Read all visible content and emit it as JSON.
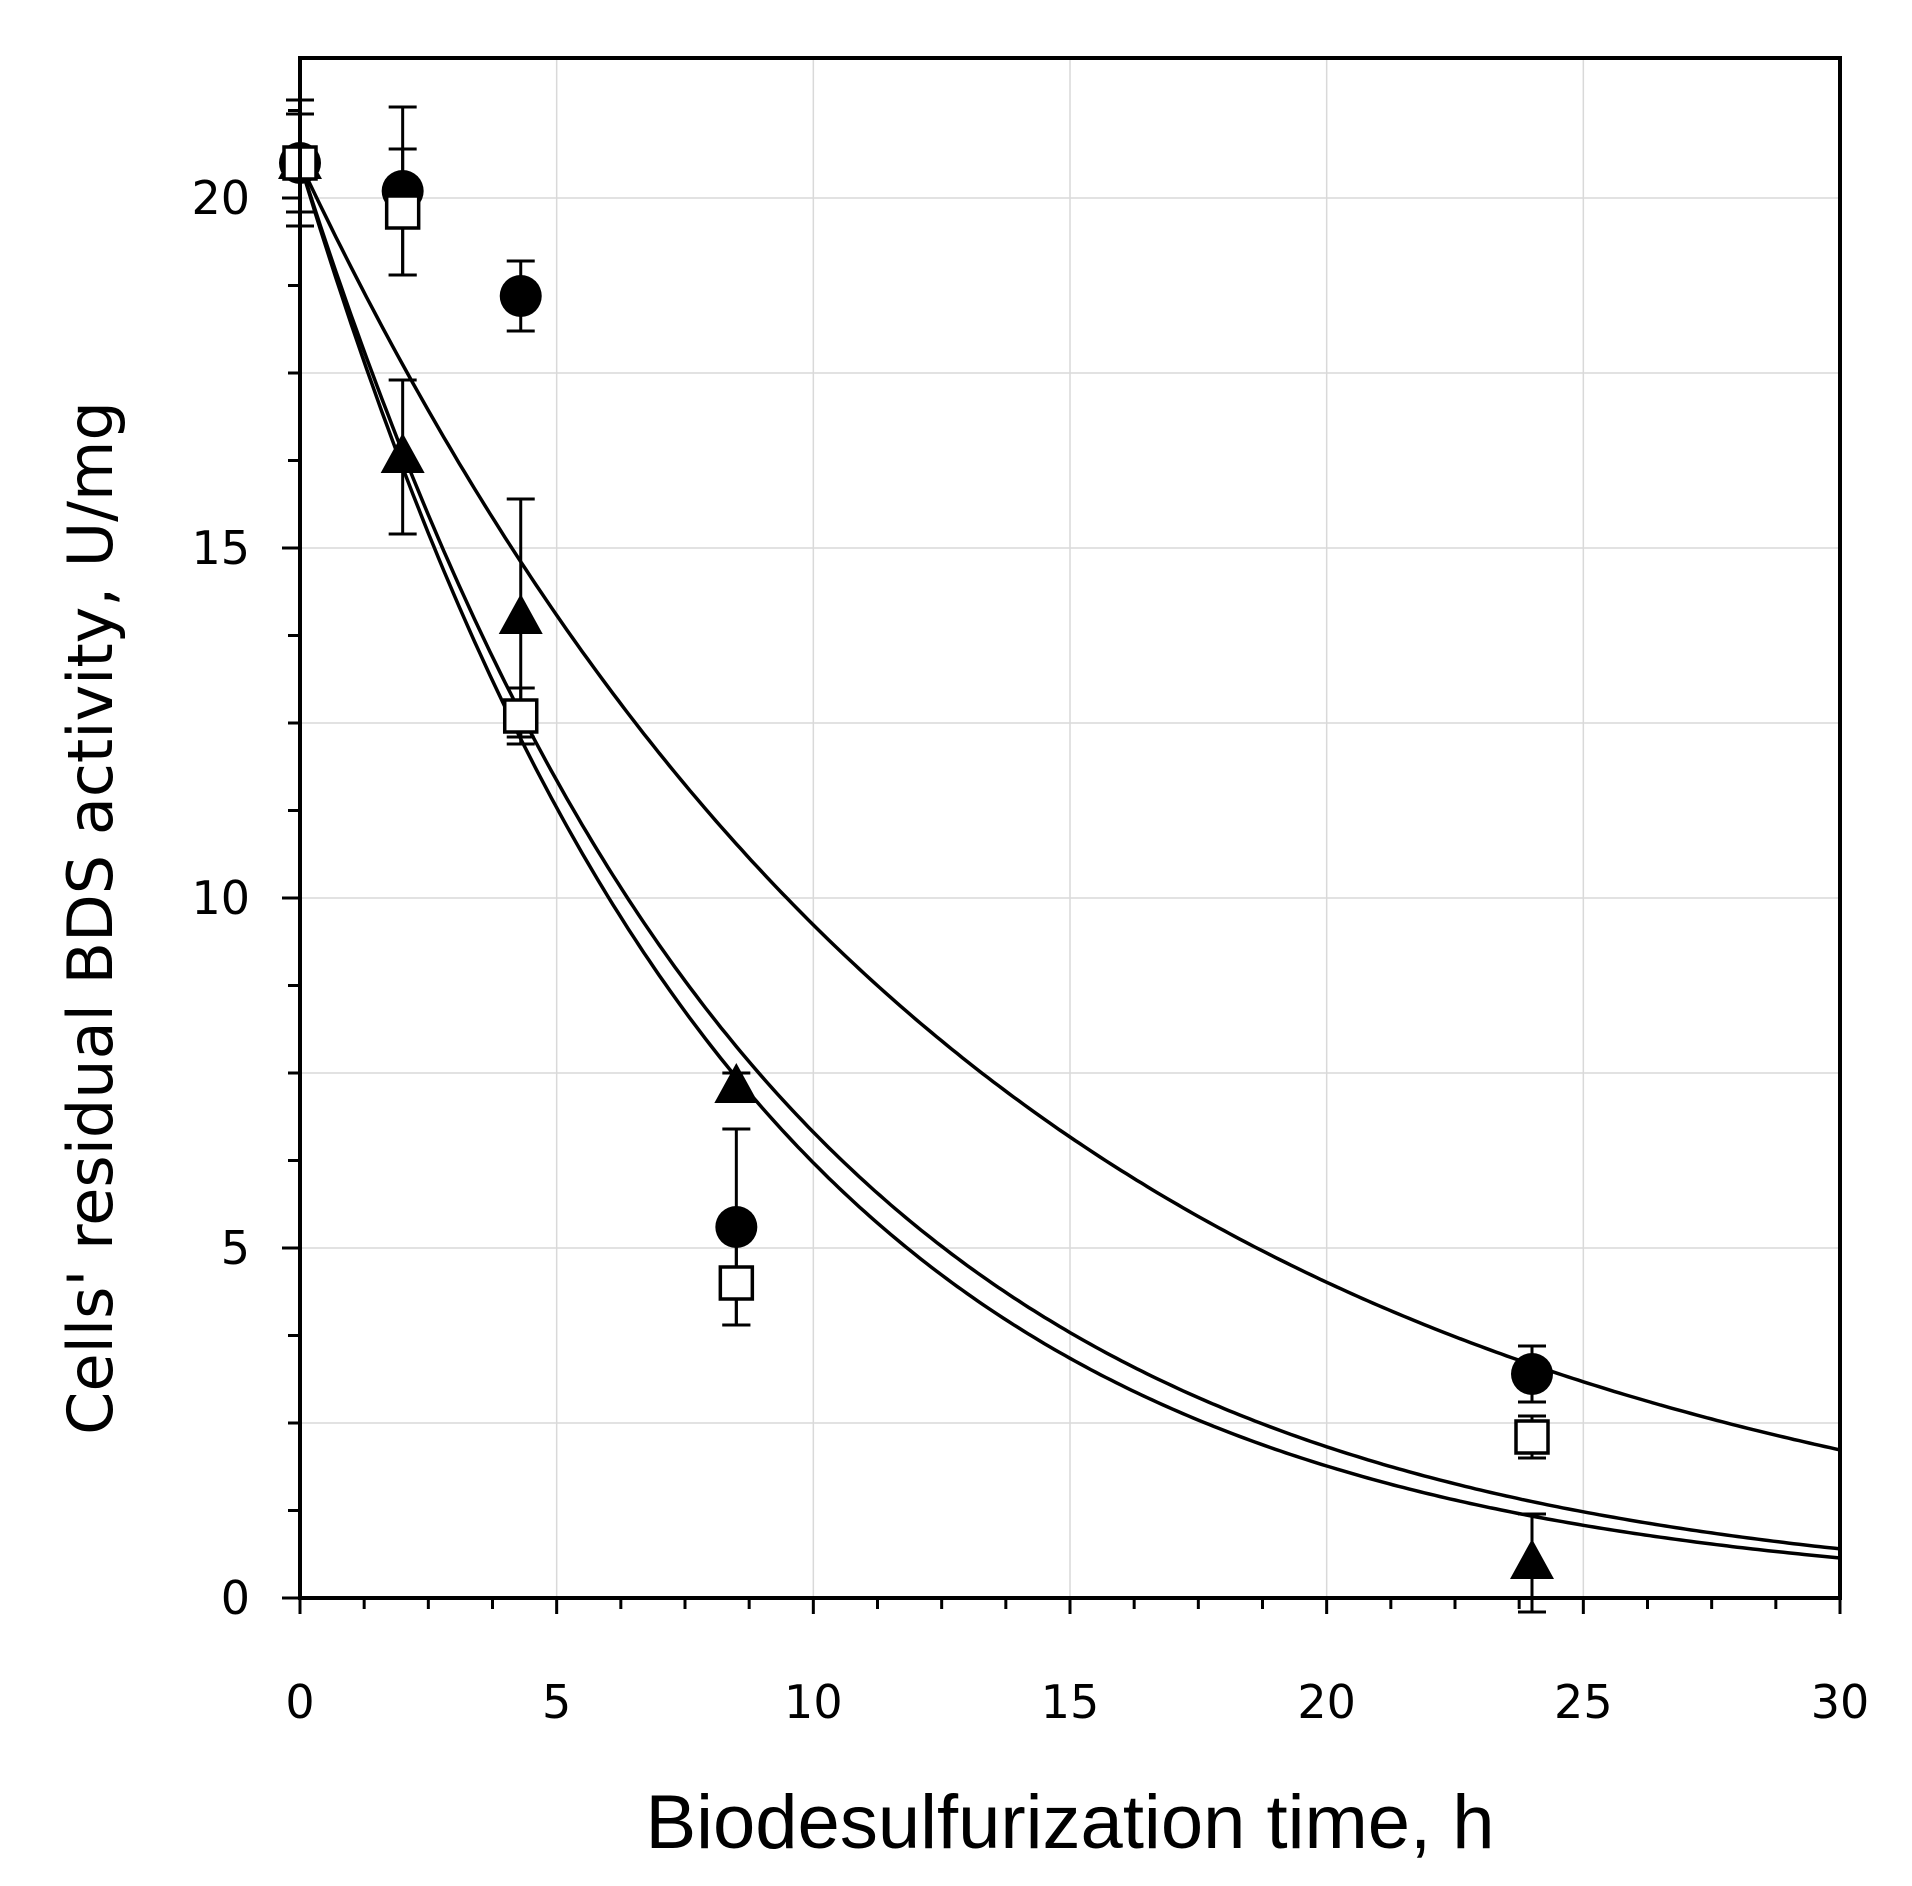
{
  "chart_data": {
    "type": "scatter",
    "title": "",
    "xlabel": "Biodesulfurization time, h",
    "ylabel": "Cells' residual BDS activity, U/mg",
    "xlim": [
      0,
      30
    ],
    "ylim": [
      0,
      22
    ],
    "x_ticks": [
      0,
      5,
      10,
      15,
      20,
      25,
      30
    ],
    "x_tick_labels": [
      "0",
      "5",
      "10",
      "15",
      "20",
      "25",
      "30"
    ],
    "y_ticks": [
      0,
      5,
      10,
      15,
      20
    ],
    "y_tick_labels": [
      "0",
      "5",
      "10",
      "15",
      "20"
    ],
    "grid": true,
    "legend": "none",
    "series": [
      {
        "name": "filled circles",
        "marker": "circle-filled",
        "x": [
          0,
          2,
          4.3,
          8.5,
          24
        ],
        "y": [
          20.5,
          20.1,
          18.6,
          5.3,
          3.2
        ],
        "err": [
          0.9,
          1.2,
          0.5,
          1.4,
          0.4
        ]
      },
      {
        "name": "filled triangles",
        "marker": "triangle-filled",
        "x": [
          0,
          2,
          4.3,
          8.5,
          24
        ],
        "y": [
          20.5,
          16.3,
          14.0,
          7.3,
          0.5
        ],
        "err": [
          0.9,
          1.1,
          1.7,
          0.2,
          0.7
        ]
      },
      {
        "name": "open squares",
        "marker": "square-open",
        "x": [
          0,
          2,
          4.3,
          8.5,
          24
        ],
        "y": [
          20.5,
          19.8,
          12.6,
          4.5,
          2.3
        ],
        "err": [
          0.7,
          0.9,
          0.4,
          0.6,
          0.3
        ]
      }
    ],
    "fit_curves": [
      {
        "name": "fit upper",
        "model": "exponential decay",
        "y0": 20.5,
        "k": 0.0757
      },
      {
        "name": "fit middle",
        "model": "exponential decay",
        "y0": 20.5,
        "k": 0.1125
      },
      {
        "name": "fit lower",
        "model": "exponential decay",
        "y0": 20.5,
        "k": 0.1193
      }
    ]
  }
}
